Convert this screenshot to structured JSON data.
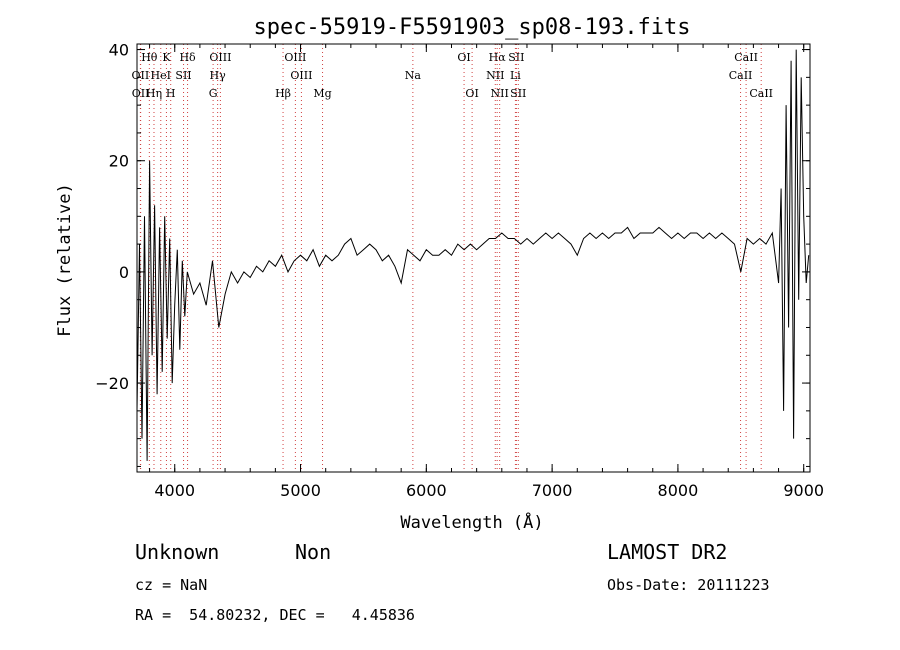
{
  "chart_data": {
    "type": "line",
    "title": "spec-55919-F5591903_sp08-193.fits",
    "xlabel": "Wavelength (Å)",
    "ylabel": "Flux (relative)",
    "xlim": [
      3700,
      9050
    ],
    "ylim": [
      -36,
      41
    ],
    "xticks": [
      4000,
      5000,
      6000,
      7000,
      8000,
      9000
    ],
    "yticks": [
      -20,
      0,
      20,
      40
    ],
    "grid": false,
    "series": [
      {
        "values_note": "",
        "x": [
          3700,
          3720,
          3740,
          3760,
          3780,
          3800,
          3820,
          3840,
          3860,
          3880,
          3900,
          3920,
          3940,
          3960,
          3980,
          4000,
          4020,
          4040,
          4060,
          4080,
          4100,
          4150,
          4200,
          4250,
          4300,
          4350,
          4400,
          4450,
          4500,
          4550,
          4600,
          4650,
          4700,
          4750,
          4800,
          4850,
          4900,
          4950,
          5000,
          5050,
          5100,
          5150,
          5200,
          5250,
          5300,
          5350,
          5400,
          5450,
          5500,
          5550,
          5600,
          5650,
          5700,
          5750,
          5800,
          5850,
          5900,
          5950,
          6000,
          6050,
          6100,
          6150,
          6200,
          6250,
          6300,
          6350,
          6400,
          6450,
          6500,
          6550,
          6600,
          6650,
          6700,
          6750,
          6800,
          6850,
          6900,
          6950,
          7000,
          7050,
          7100,
          7150,
          7200,
          7250,
          7300,
          7350,
          7400,
          7450,
          7500,
          7550,
          7600,
          7650,
          7700,
          7750,
          7800,
          7850,
          7900,
          7950,
          8000,
          8050,
          8100,
          8150,
          8200,
          8250,
          8300,
          8350,
          8400,
          8450,
          8500,
          8550,
          8600,
          8650,
          8700,
          8750,
          8800,
          8820,
          8840,
          8860,
          8880,
          8900,
          8920,
          8940,
          8960,
          8980,
          9000,
          9020,
          9040
        ],
        "y": [
          -25,
          5,
          -30,
          10,
          -34,
          20,
          -15,
          12,
          -22,
          8,
          -18,
          10,
          -12,
          6,
          -20,
          -6,
          4,
          -14,
          2,
          -8,
          0,
          -4,
          -2,
          -6,
          2,
          -10,
          -4,
          0,
          -2,
          0,
          -1,
          1,
          0,
          2,
          1,
          3,
          0,
          2,
          3,
          2,
          4,
          1,
          3,
          2,
          3,
          5,
          6,
          3,
          4,
          5,
          4,
          2,
          3,
          1,
          -2,
          4,
          3,
          2,
          4,
          3,
          3,
          4,
          3,
          5,
          4,
          5,
          4,
          5,
          6,
          6,
          7,
          6,
          6,
          5,
          6,
          5,
          6,
          7,
          6,
          7,
          6,
          5,
          3,
          6,
          7,
          6,
          7,
          6,
          7,
          7,
          8,
          6,
          7,
          7,
          7,
          8,
          7,
          6,
          7,
          6,
          7,
          7,
          6,
          7,
          6,
          7,
          6,
          5,
          0,
          6,
          5,
          6,
          5,
          7,
          -2,
          15,
          -25,
          30,
          -10,
          38,
          -30,
          40,
          -5,
          35,
          10,
          -2,
          3
        ]
      }
    ],
    "lines": [
      {
        "label": "Hθ",
        "x": 3798,
        "row": 1
      },
      {
        "label": "K",
        "x": 3934,
        "row": 1
      },
      {
        "label": "Hδ",
        "x": 4102,
        "row": 1
      },
      {
        "label": "OIII",
        "x": 4363,
        "row": 1
      },
      {
        "label": "OIII",
        "x": 4959,
        "row": 1
      },
      {
        "label": "OI",
        "x": 6300,
        "row": 1
      },
      {
        "label": "Hα",
        "x": 6563,
        "row": 1
      },
      {
        "label": "SII",
        "x": 6716,
        "row": 1
      },
      {
        "label": "CaII",
        "x": 8542,
        "row": 1
      },
      {
        "label": "OII",
        "x": 3727,
        "row": 2
      },
      {
        "label": "HeI",
        "x": 3889,
        "row": 2
      },
      {
        "label": "SII",
        "x": 4070,
        "row": 2
      },
      {
        "label": "Hγ",
        "x": 4341,
        "row": 2
      },
      {
        "label": "OIII",
        "x": 5007,
        "row": 2
      },
      {
        "label": "Na",
        "x": 5893,
        "row": 2
      },
      {
        "label": "NII",
        "x": 6548,
        "row": 2
      },
      {
        "label": "Li",
        "x": 6708,
        "row": 2
      },
      {
        "label": "CaII",
        "x": 8498,
        "row": 2
      },
      {
        "label": "OII",
        "x": 3729,
        "row": 3
      },
      {
        "label": "Hη",
        "x": 3835,
        "row": 3
      },
      {
        "label": "H",
        "x": 3968,
        "row": 3
      },
      {
        "label": "G",
        "x": 4305,
        "row": 3
      },
      {
        "label": "Hβ",
        "x": 4861,
        "row": 3
      },
      {
        "label": "Mg",
        "x": 5175,
        "row": 3
      },
      {
        "label": "OI",
        "x": 6364,
        "row": 3
      },
      {
        "label": "NII",
        "x": 6583,
        "row": 3
      },
      {
        "label": "SII",
        "x": 6731,
        "row": 3
      },
      {
        "label": "CaII",
        "x": 8662,
        "row": 3
      }
    ],
    "line_colors": {
      "trace": "#000000",
      "marker": "#d04040"
    }
  },
  "info": {
    "class": "Unknown",
    "subclass": "Non",
    "survey": "LAMOST DR2",
    "cz": "cz = NaN",
    "obs_date": "Obs-Date: 20111223",
    "radec": "RA =  54.80232, DEC =   4.45836"
  }
}
